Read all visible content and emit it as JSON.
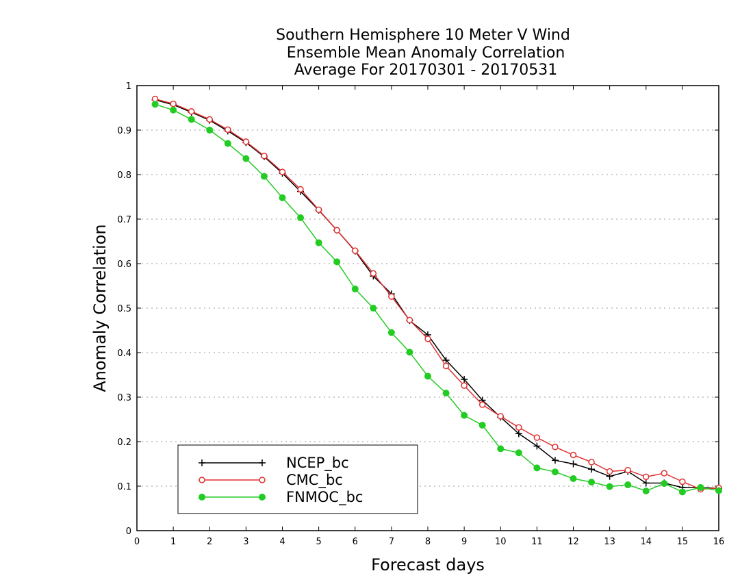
{
  "chart_data": {
    "type": "line",
    "title_lines": [
      "Southern Hemisphere 10 Meter V Wind",
      "Ensemble Mean Anomaly Correlation",
      "Average For 20170301 - 20170531"
    ],
    "xlabel": "Forecast days",
    "ylabel": "Anomaly Correlation",
    "xlim": [
      0,
      16
    ],
    "ylim": [
      0,
      1
    ],
    "x_ticks": [
      "0",
      "1",
      "2",
      "3",
      "4",
      "5",
      "6",
      "7",
      "8",
      "9",
      "10",
      "11",
      "12",
      "13",
      "14",
      "15",
      "16"
    ],
    "y_ticks": [
      "0",
      "0.1",
      "0.2",
      "0.3",
      "0.4",
      "0.5",
      "0.6",
      "0.7",
      "0.8",
      "0.9",
      "1"
    ],
    "grid": "dotted horizontal",
    "legend_position": "bottom-left",
    "x": [
      0.5,
      1,
      1.5,
      2,
      2.5,
      3,
      3.5,
      4,
      4.5,
      5,
      5.5,
      6,
      6.5,
      7,
      7.5,
      8,
      8.5,
      9,
      9.5,
      10,
      10.5,
      11,
      11.5,
      12,
      12.5,
      13,
      13.5,
      14,
      14.5,
      15,
      15.5,
      16
    ],
    "series": [
      {
        "name": "NCEP_bc",
        "color": "#000000",
        "marker": "plus",
        "values": [
          0.968,
          0.957,
          0.94,
          0.922,
          0.898,
          0.872,
          0.84,
          0.803,
          0.762,
          0.72,
          0.675,
          0.628,
          0.572,
          0.532,
          0.472,
          0.44,
          0.383,
          0.34,
          0.293,
          0.255,
          0.218,
          0.19,
          0.158,
          0.15,
          0.138,
          0.122,
          0.133,
          0.107,
          0.107,
          0.097,
          0.097,
          0.095
        ]
      },
      {
        "name": "CMC_bc",
        "color": "#e03030",
        "marker": "open-circle",
        "values": [
          0.97,
          0.959,
          0.942,
          0.924,
          0.901,
          0.874,
          0.842,
          0.806,
          0.767,
          0.721,
          0.675,
          0.629,
          0.578,
          0.526,
          0.473,
          0.431,
          0.37,
          0.326,
          0.283,
          0.257,
          0.232,
          0.209,
          0.188,
          0.17,
          0.154,
          0.133,
          0.136,
          0.121,
          0.129,
          0.11,
          0.093,
          0.096
        ]
      },
      {
        "name": "FNMOC_bc",
        "color": "#22cc22",
        "marker": "filled-circle",
        "values": [
          0.958,
          0.945,
          0.924,
          0.9,
          0.87,
          0.836,
          0.796,
          0.748,
          0.703,
          0.647,
          0.604,
          0.543,
          0.5,
          0.445,
          0.401,
          0.347,
          0.309,
          0.259,
          0.237,
          0.184,
          0.175,
          0.141,
          0.132,
          0.117,
          0.109,
          0.099,
          0.103,
          0.089,
          0.106,
          0.087,
          0.097,
          0.09
        ]
      }
    ]
  }
}
